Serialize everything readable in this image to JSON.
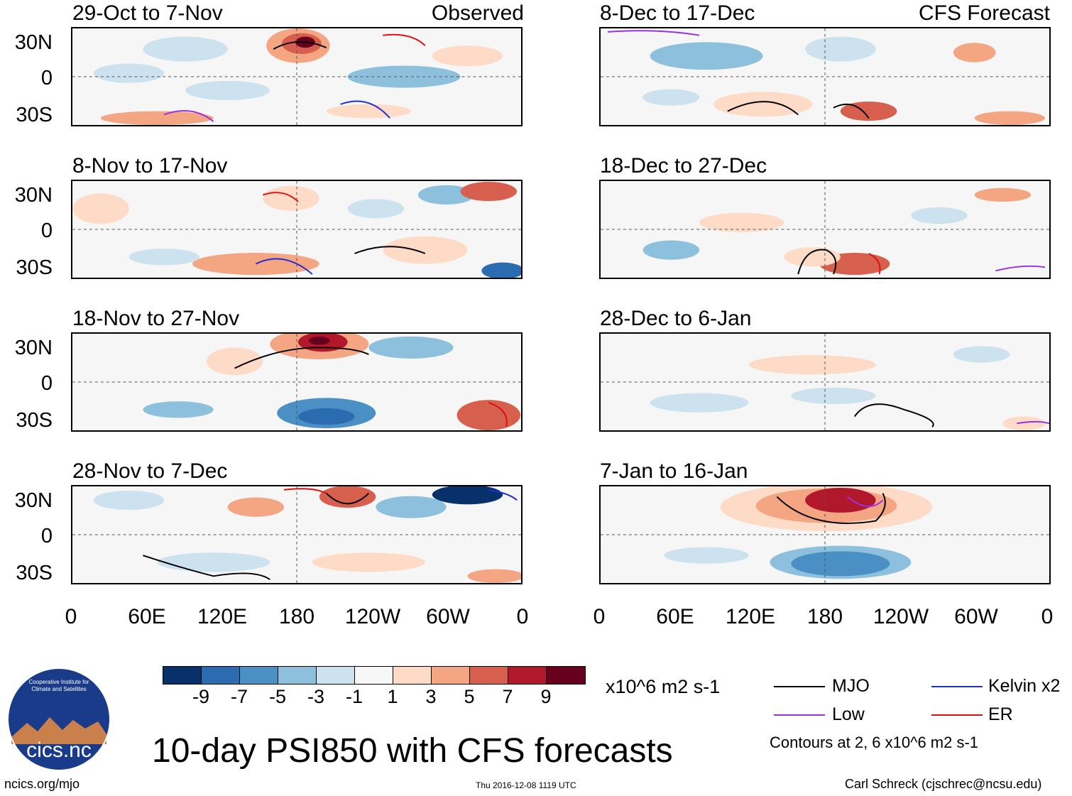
{
  "panels_left": [
    {
      "date": "29-Oct to 7-Nov",
      "label": "Observed"
    },
    {
      "date": "8-Nov to 17-Nov",
      "label": ""
    },
    {
      "date": "18-Nov to 27-Nov",
      "label": ""
    },
    {
      "date": "28-Nov to 7-Dec",
      "label": ""
    }
  ],
  "panels_right": [
    {
      "date": "8-Dec to 17-Dec",
      "label": "CFS Forecast"
    },
    {
      "date": "18-Dec to 27-Dec",
      "label": ""
    },
    {
      "date": "28-Dec to 6-Jan",
      "label": ""
    },
    {
      "date": "7-Jan to 16-Jan",
      "label": ""
    }
  ],
  "y_ticks": [
    "30N",
    "0",
    "30S"
  ],
  "x_ticks": [
    "0",
    "60E",
    "120E",
    "180",
    "120W",
    "60W",
    "0"
  ],
  "colorbar": {
    "colors": [
      "#08306b",
      "#2b6cb0",
      "#4a90c4",
      "#8cc0dd",
      "#cde2ef",
      "#f7f7f7",
      "#fddbc7",
      "#f4a582",
      "#d6604d",
      "#b2182b",
      "#67001f"
    ],
    "ticks": [
      "-9",
      "-7",
      "-5",
      "-3",
      "-1",
      "1",
      "3",
      "5",
      "7",
      "9"
    ],
    "units": "x10^6 m2 s-1"
  },
  "legend": [
    {
      "name": "MJO",
      "color": "#000000"
    },
    {
      "name": "Kelvin x2",
      "color": "#1f2fd4"
    },
    {
      "name": "Low",
      "color": "#9b30e0"
    },
    {
      "name": "ER",
      "color": "#e01010"
    }
  ],
  "contour_note": "Contours at 2, 6 x10^6 m2 s-1",
  "title": "10-day PSI850 with CFS forecasts",
  "footer": {
    "left": "ncics.org/mjo",
    "center": "Thu 2016-12-08 1119 UTC",
    "right": "Carl Schreck (cjschrec@ncsu.edu)"
  },
  "logo": {
    "text": "cics.nc",
    "ring_text": "Cooperative Institute for Climate and Satellites",
    "colors": {
      "bg": "#1a3a8a",
      "mountain": "#c9804a"
    }
  }
}
